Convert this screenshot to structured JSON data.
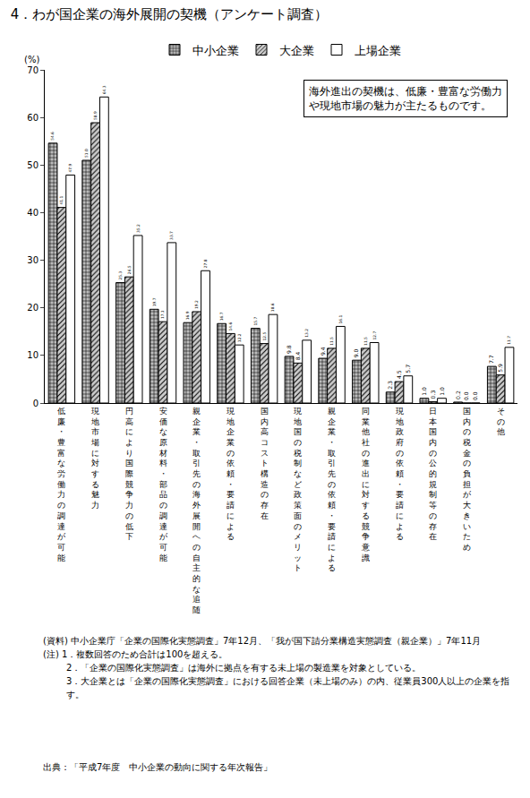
{
  "chart_data": {
    "type": "bar",
    "title": "4．わが国企業の海外展開の契機（アンケート調査）",
    "y_label": "(%)",
    "annotation": [
      "海外進出の契機は、低廉・豊富な労働力",
      "や現地市場の魅力が主たるものです。"
    ],
    "categories": [
      "低廉・豊富な労働力の調達が可能",
      "現地市場に対する魅力",
      "円高により国際競争力の低下",
      "安価な原材料・部品の調達が可能",
      "親企業・取引先の海外展開への自主的な追随",
      "現地企業の依頼・要請による",
      "国内高コスト構造の存在",
      "現地国の税制など政策面のメリット",
      "親企業・取引先の依頼・要請による",
      "同業他社の進出に対する競争意識",
      "現地政府の依頼・要請による",
      "日本国内の公的規制等の存在",
      "国内の税金の負担が大きいため",
      "その他"
    ],
    "series": [
      {
        "name": "中小企業",
        "color": "#bbbbbb",
        "marker": "grid",
        "values": [
          54.6,
          51.0,
          25.3,
          19.7,
          16.9,
          16.7,
          15.7,
          9.8,
          9.4,
          9.0,
          2.3,
          1.0,
          0.2,
          7.7
        ],
        "value_labels": [
          "54.6",
          "51.0",
          "25.3",
          "19.7",
          "16.9",
          "16.7",
          "15.7",
          "9.8",
          "9.4",
          "9.0",
          "2.3",
          "1.0",
          "0.2",
          "7.7"
        ]
      },
      {
        "name": "大企業",
        "color": "#cccccc",
        "marker": "hatch",
        "values": [
          41.1,
          58.9,
          26.5,
          17.1,
          19.2,
          14.6,
          12.5,
          8.4,
          11.5,
          11.5,
          4.5,
          0.3,
          0.0,
          5.9
        ],
        "value_labels": [
          "41.1",
          "58.9",
          "26.5",
          "17.1",
          "19.2",
          "14.6",
          "12.5",
          "8.4",
          "11.5",
          "11.5",
          "4.5",
          "0.3",
          "0.0",
          "5.9"
        ]
      },
      {
        "name": "上場企業",
        "color": "#ffffff",
        "marker": "plain",
        "values": [
          47.9,
          64.3,
          35.2,
          33.7,
          27.8,
          12.2,
          18.6,
          13.2,
          16.1,
          12.7,
          5.7,
          1.0,
          0.0,
          11.7
        ],
        "value_labels": [
          "47.9",
          "64.3",
          "35.2",
          "33.7",
          "27.8",
          "12.2",
          "18.6",
          "13.2",
          "16.1",
          "12.7",
          "5.7",
          "1.0",
          "0.0",
          "11.7"
        ]
      }
    ],
    "ylim": [
      0,
      70
    ],
    "yticks": [
      0,
      10,
      20,
      30,
      40,
      50,
      60,
      70
    ],
    "grid": false,
    "legend": "top",
    "data_labels": true,
    "source_note": "(資料) 中小企業庁「企業の国際化実態調査」7年12月、「我が国下請分業構造実態調査（親企業）」7年11月",
    "notes": [
      "(注) 1．複数回答のため合計は100を超える。",
      "2．「企業の国際化実態調査」は海外に拠点を有する未上場の製造業を対象としている。",
      "3．大企業とは「企業の国際化実態調査」における回答企業（未上場のみ）の内、従業員300人以上の企業を指す。"
    ],
    "citation": "出典：「平成7年度　中小企業の動向に関する年次報告」"
  }
}
